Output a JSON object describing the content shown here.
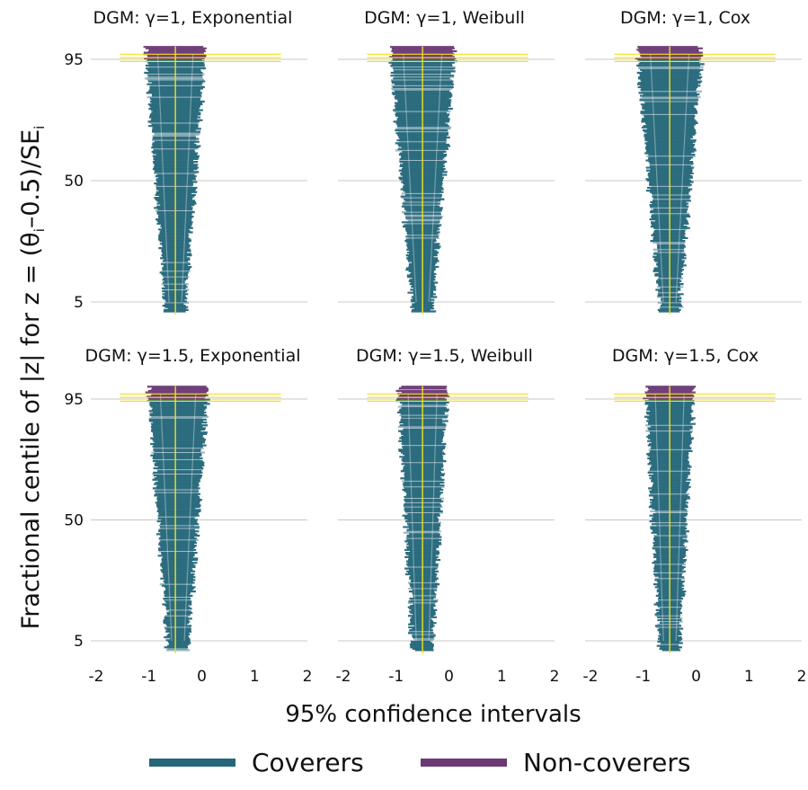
{
  "chart_data": {
    "type": "faceted-interval-plot",
    "ylabel": "Fractional centile of |z| for z = (θ",
    "ylabel_sub1": "i",
    "ylabel_mid": "–0.5)/SE",
    "ylabel_sub2": "i",
    "xlabel": "95% confidence intervals",
    "x_ticks": [
      "-2",
      "-1",
      "0",
      "1",
      "2"
    ],
    "x_tick_values": [
      -2,
      -1,
      0,
      1,
      2
    ],
    "xlim": [
      -2,
      2
    ],
    "y_ticks": [
      "95",
      "50",
      "5"
    ],
    "y_tick_values": [
      95,
      50,
      5
    ],
    "ylim": [
      0,
      100
    ],
    "reference_line_x": -0.5,
    "legend": [
      {
        "label": "Coverers",
        "color": "#25677a"
      },
      {
        "label": "Non-coverers",
        "color": "#6b3a76"
      }
    ],
    "colors": {
      "coverers": "#25677a",
      "non_coverers": "#6b3a76",
      "reference": "#f2e01c",
      "grid": "#c8c8c8"
    },
    "panels": [
      {
        "title": "DGM: γ=1, Exponential",
        "true_value": -0.5,
        "half_width_at_5": 0.2,
        "half_width_at_95": 0.55,
        "noncoverer_threshold": 95
      },
      {
        "title": "DGM: γ=1, Weibull",
        "true_value": -0.5,
        "half_width_at_5": 0.2,
        "half_width_at_95": 0.6,
        "noncoverer_threshold": 95
      },
      {
        "title": "DGM: γ=1, Cox",
        "true_value": -0.5,
        "half_width_at_5": 0.2,
        "half_width_at_95": 0.6,
        "noncoverer_threshold": 95
      },
      {
        "title": "DGM: γ=1.5, Exponential",
        "true_value": -0.45,
        "half_width_at_5": 0.2,
        "half_width_at_95": 0.55,
        "noncoverer_threshold": 95
      },
      {
        "title": "DGM: γ=1.5, Weibull",
        "true_value": -0.5,
        "half_width_at_5": 0.2,
        "half_width_at_95": 0.45,
        "noncoverer_threshold": 95
      },
      {
        "title": "DGM: γ=1.5, Cox",
        "true_value": -0.5,
        "half_width_at_5": 0.2,
        "half_width_at_95": 0.45,
        "noncoverer_threshold": 95
      }
    ]
  }
}
